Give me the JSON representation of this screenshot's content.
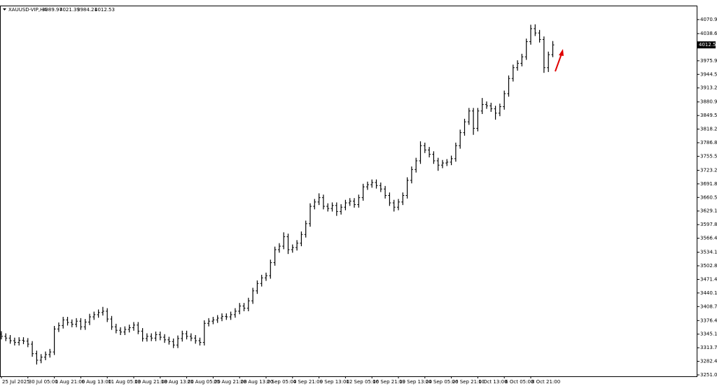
{
  "chart_data": {
    "type": "ohlc",
    "symbol": "XAUUSD-VIP,H4",
    "color": "#000000",
    "ylim": [
      3247.8,
      4103.2
    ],
    "yticks": [
      {
        "value": 4070.9,
        "label": "4070.90"
      },
      {
        "value": 4038.6,
        "label": "4038.60"
      },
      {
        "value": 3975.9,
        "label": "3975.90"
      },
      3944.55,
      {
        "value": 3913.2,
        "label": "3913.20"
      },
      {
        "value": 3880.9,
        "label": "3880.90"
      },
      3849.55,
      {
        "value": 3818.2,
        "label": "3818.20"
      },
      {
        "value": 3786.8,
        "label": "3786.80"
      },
      {
        "value": 3755.5,
        "label": "3755.50"
      },
      {
        "value": 3723.2,
        "label": "3723.20"
      },
      3691.85,
      {
        "value": 3660.5,
        "label": "3660.50"
      },
      3629.15,
      {
        "value": 3597.8,
        "label": "3597.80"
      },
      3566.45,
      3534.15,
      {
        "value": 3502.8,
        "label": "3502.80"
      },
      3471.45,
      {
        "value": 3440.1,
        "label": "3440.10"
      },
      3408.75,
      3376.45,
      {
        "value": 3345.1,
        "label": "3345.10"
      },
      {
        "value": 3313.7,
        "label": "3313.70"
      },
      {
        "value": 3282.4,
        "label": "3282.40"
      },
      3251.05
    ],
    "categories": [
      "25 Jul 2025",
      null,
      null,
      null,
      null,
      null,
      "30 Jul 05:00",
      null,
      null,
      null,
      null,
      null,
      "1 Aug 21:00",
      null,
      null,
      null,
      null,
      null,
      "6 Aug 13:00",
      null,
      null,
      null,
      null,
      null,
      "11 Aug 05:00",
      null,
      null,
      null,
      null,
      null,
      "13 Aug 21:00",
      null,
      null,
      null,
      null,
      null,
      "18 Aug 13:00",
      null,
      null,
      null,
      null,
      null,
      "21 Aug 05:00",
      null,
      null,
      null,
      null,
      null,
      "25 Aug 21:00",
      null,
      null,
      null,
      null,
      null,
      "28 Aug 13:00",
      null,
      null,
      null,
      null,
      null,
      "2 Sep 05:00",
      null,
      null,
      null,
      null,
      null,
      "4 Sep 21:00",
      null,
      null,
      null,
      null,
      null,
      "9 Sep 13:00",
      null,
      null,
      null,
      null,
      null,
      "12 Sep 05:00",
      null,
      null,
      null,
      null,
      null,
      "16 Sep 21:00",
      null,
      null,
      null,
      null,
      null,
      "19 Sep 13:00",
      null,
      null,
      null,
      null,
      null,
      "24 Sep 05:00",
      null,
      null,
      null,
      null,
      null,
      "26 Sep 21:00",
      null,
      null,
      null,
      null,
      null,
      "1 Oct 13:00",
      null,
      null,
      null,
      null,
      null,
      "6 Oct 05:00",
      null,
      null,
      null,
      null,
      null,
      "8 Oct 21:00",
      null,
      null,
      null,
      null,
      null
    ],
    "open": [
      3345,
      3340,
      3336,
      3330,
      3326,
      3331,
      3329,
      3322,
      3300,
      3285,
      3292,
      3298,
      3304,
      3357,
      3365,
      3378,
      3372,
      3368,
      3375,
      3362,
      3373,
      3385,
      3390,
      3395,
      3398,
      3380,
      3362,
      3354,
      3350,
      3356,
      3360,
      3366,
      3352,
      3335,
      3340,
      3336,
      3344,
      3338,
      3332,
      3328,
      3320,
      3335,
      3346,
      3340,
      3336,
      3330,
      3326,
      3370,
      3375,
      3378,
      3382,
      3386,
      3385,
      3390,
      3398,
      3410,
      3405,
      3422,
      3445,
      3462,
      3475,
      3480,
      3510,
      3540,
      3548,
      3570,
      3540,
      3545,
      3555,
      3575,
      3600,
      3640,
      3650,
      3660,
      3640,
      3635,
      3642,
      3628,
      3638,
      3648,
      3652,
      3644,
      3660,
      3685,
      3690,
      3695,
      3688,
      3680,
      3665,
      3648,
      3638,
      3650,
      3665,
      3700,
      3725,
      3745,
      3780,
      3770,
      3760,
      3745,
      3735,
      3740,
      3742,
      3750,
      3780,
      3810,
      3835,
      3860,
      3820,
      3860,
      3875,
      3872,
      3865,
      3855,
      3870,
      3900,
      3935,
      3960,
      3970,
      3985,
      4020,
      4050,
      4040,
      4025,
      3960,
      3989.97
    ],
    "high": [
      3352,
      3347,
      3343,
      3337,
      3338,
      3338,
      3336,
      3329,
      3307,
      3299,
      3305,
      3311,
      3364,
      3372,
      3385,
      3385,
      3379,
      3382,
      3382,
      3380,
      3392,
      3397,
      3402,
      3408,
      3405,
      3387,
      3369,
      3361,
      3363,
      3367,
      3373,
      3373,
      3359,
      3347,
      3347,
      3351,
      3351,
      3345,
      3339,
      3335,
      3342,
      3353,
      3353,
      3347,
      3343,
      3337,
      3377,
      3382,
      3385,
      3389,
      3393,
      3393,
      3397,
      3405,
      3417,
      3417,
      3429,
      3452,
      3469,
      3482,
      3487,
      3517,
      3547,
      3555,
      3580,
      3577,
      3552,
      3562,
      3582,
      3607,
      3647,
      3657,
      3670,
      3667,
      3647,
      3649,
      3649,
      3645,
      3655,
      3659,
      3659,
      3667,
      3692,
      3697,
      3702,
      3702,
      3695,
      3687,
      3672,
      3655,
      3657,
      3672,
      3707,
      3732,
      3752,
      3790,
      3787,
      3777,
      3767,
      3752,
      3747,
      3749,
      3757,
      3787,
      3817,
      3842,
      3867,
      3867,
      3867,
      3890,
      3882,
      3879,
      3872,
      3877,
      3907,
      3942,
      3967,
      3977,
      3992,
      4027,
      4059,
      4060,
      4047,
      4032,
      3997,
      4021.39
    ],
    "low": [
      3333,
      3329,
      3323,
      3319,
      3319,
      3322,
      3315,
      3293,
      3275,
      3278,
      3285,
      3291,
      3297,
      3350,
      3358,
      3365,
      3361,
      3361,
      3355,
      3355,
      3366,
      3378,
      3383,
      3388,
      3373,
      3355,
      3347,
      3343,
      3343,
      3349,
      3353,
      3345,
      3328,
      3328,
      3329,
      3329,
      3331,
      3325,
      3321,
      3313,
      3313,
      3328,
      3333,
      3329,
      3323,
      3319,
      3319,
      3363,
      3368,
      3371,
      3375,
      3378,
      3378,
      3383,
      3391,
      3398,
      3398,
      3415,
      3438,
      3455,
      3468,
      3473,
      3503,
      3533,
      3541,
      3530,
      3533,
      3538,
      3548,
      3568,
      3593,
      3633,
      3643,
      3633,
      3628,
      3628,
      3618,
      3621,
      3631,
      3641,
      3637,
      3637,
      3653,
      3678,
      3683,
      3681,
      3673,
      3658,
      3641,
      3628,
      3631,
      3643,
      3658,
      3693,
      3718,
      3738,
      3763,
      3753,
      3738,
      3722,
      3728,
      3733,
      3735,
      3743,
      3773,
      3803,
      3828,
      3805,
      3813,
      3853,
      3865,
      3858,
      3840,
      3848,
      3863,
      3893,
      3928,
      3953,
      3963,
      3978,
      4013,
      4033,
      4018,
      3948,
      3950,
      3984.21
    ],
    "close": [
      3340,
      3336,
      3330,
      3326,
      3331,
      3329,
      3322,
      3300,
      3285,
      3292,
      3298,
      3304,
      3357,
      3365,
      3378,
      3372,
      3368,
      3375,
      3362,
      3373,
      3385,
      3390,
      3395,
      3398,
      3380,
      3362,
      3354,
      3350,
      3356,
      3360,
      3366,
      3352,
      3335,
      3340,
      3336,
      3344,
      3338,
      3332,
      3328,
      3320,
      3335,
      3346,
      3340,
      3336,
      3330,
      3326,
      3370,
      3375,
      3378,
      3382,
      3386,
      3385,
      3390,
      3398,
      3410,
      3405,
      3422,
      3445,
      3462,
      3475,
      3480,
      3510,
      3540,
      3548,
      3570,
      3540,
      3545,
      3555,
      3575,
      3600,
      3640,
      3650,
      3660,
      3640,
      3635,
      3642,
      3628,
      3638,
      3648,
      3652,
      3644,
      3660,
      3685,
      3690,
      3695,
      3688,
      3680,
      3665,
      3648,
      3638,
      3650,
      3665,
      3700,
      3725,
      3745,
      3780,
      3770,
      3760,
      3745,
      3735,
      3740,
      3742,
      3750,
      3780,
      3810,
      3835,
      3860,
      3820,
      3860,
      3875,
      3872,
      3865,
      3855,
      3870,
      3900,
      3935,
      3960,
      3970,
      3985,
      4020,
      4050,
      4040,
      4025,
      3960,
      3989.97,
      4012.53
    ]
  }
}
